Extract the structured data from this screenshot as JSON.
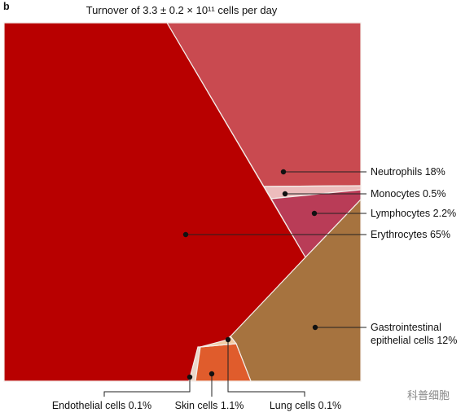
{
  "panel_label": "b",
  "watermark": "科普细胞",
  "chart_data": {
    "type": "treemap",
    "title": "Turnover of 3.3 ± 0.2 × 10¹¹ cells per day",
    "categories": [
      "Neutrophils",
      "Monocytes",
      "Lymphocytes",
      "Erythrocytes",
      "Gastrointestinal epithelial cells",
      "Endothelial cells",
      "Skin cells",
      "Lung cells"
    ],
    "values": [
      18,
      0.5,
      2.2,
      65,
      12,
      0.1,
      1.1,
      0.1
    ],
    "value_labels": [
      "18%",
      "0.5%",
      "2.2%",
      "65%",
      "12%",
      "0.1%",
      "1.1%",
      "0.1%"
    ],
    "colors": [
      "#c94a50",
      "#ecbcbc",
      "#b93c57",
      "#b80000",
      "#a6733f",
      "#ead6c8",
      "#e05c2c",
      "#f1cba4"
    ]
  }
}
